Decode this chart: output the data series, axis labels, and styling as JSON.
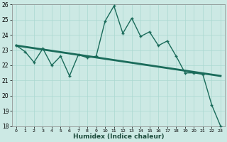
{
  "xlabel": "Humidex (Indice chaleur)",
  "ylabel": "",
  "bg_color": "#cce9e4",
  "line_color": "#1a6b5a",
  "grid_color": "#aad8d0",
  "xmin": -0.5,
  "xmax": 23.5,
  "ymin": 18,
  "ymax": 26,
  "yticks": [
    18,
    19,
    20,
    21,
    22,
    23,
    24,
    25,
    26
  ],
  "xticks": [
    0,
    1,
    2,
    3,
    4,
    5,
    6,
    7,
    8,
    9,
    10,
    11,
    12,
    13,
    14,
    15,
    16,
    17,
    18,
    19,
    20,
    21,
    22,
    23
  ],
  "line1_x": [
    0,
    1,
    2,
    3,
    4,
    5,
    6,
    7,
    8,
    9,
    10,
    11,
    12,
    13,
    14,
    15,
    16,
    17,
    18,
    19,
    20,
    21,
    22,
    23
  ],
  "line1_y": [
    23.3,
    22.9,
    22.2,
    23.1,
    22.0,
    22.6,
    21.3,
    22.7,
    22.5,
    22.6,
    24.9,
    25.9,
    24.1,
    25.1,
    23.9,
    24.2,
    23.3,
    23.6,
    22.6,
    21.5,
    21.5,
    21.4,
    19.4,
    18.0
  ],
  "line2_x": [
    0,
    23
  ],
  "line2_y": [
    23.3,
    21.3
  ]
}
